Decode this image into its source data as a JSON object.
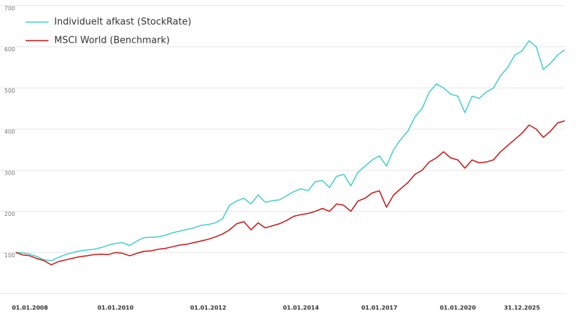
{
  "chart_data": {
    "type": "line",
    "categories": [
      null,
      null,
      "01.01.2008",
      null,
      null,
      null,
      null,
      null,
      null,
      null,
      null,
      null,
      null,
      null,
      "01.01.2010",
      null,
      null,
      null,
      null,
      null,
      null,
      null,
      null,
      null,
      null,
      null,
      null,
      "01.01.2012",
      null,
      null,
      null,
      null,
      null,
      null,
      null,
      null,
      null,
      null,
      null,
      null,
      "01.01.2014",
      null,
      null,
      null,
      null,
      null,
      null,
      null,
      null,
      null,
      null,
      "01.01.2017",
      null,
      null,
      null,
      null,
      null,
      null,
      null,
      null,
      null,
      null,
      "01.01.2020",
      null,
      null,
      null,
      null,
      null,
      null,
      null,
      null,
      "31.12.2025",
      null,
      null,
      null,
      null,
      null,
      null
    ],
    "series": [
      {
        "name": "Individuelt afkast (StockRate)",
        "color": "#40cfc9",
        "values": [
          100,
          99,
          96,
          90,
          82,
          80,
          88,
          95,
          100,
          104,
          106,
          108,
          112,
          118,
          122,
          124,
          117,
          128,
          136,
          137,
          138,
          142,
          148,
          152,
          156,
          160,
          166,
          168,
          172,
          182,
          215,
          225,
          232,
          218,
          240,
          222,
          226,
          228,
          238,
          248,
          255,
          250,
          272,
          275,
          258,
          285,
          290,
          262,
          295,
          310,
          325,
          335,
          310,
          350,
          375,
          395,
          430,
          450,
          490,
          510,
          500,
          485,
          480,
          440,
          480,
          475,
          490,
          500,
          530,
          550,
          580,
          590,
          615,
          600,
          545,
          560,
          580,
          593
        ]
      },
      {
        "name": "MSCI World (Benchmark)",
        "color": "#cc1111",
        "values": [
          100,
          94,
          92,
          85,
          80,
          70,
          78,
          82,
          86,
          90,
          92,
          95,
          96,
          95,
          100,
          98,
          92,
          98,
          103,
          104,
          108,
          110,
          114,
          118,
          120,
          124,
          128,
          132,
          138,
          145,
          155,
          170,
          175,
          155,
          172,
          160,
          165,
          170,
          178,
          188,
          192,
          195,
          200,
          207,
          200,
          218,
          215,
          200,
          225,
          232,
          245,
          250,
          210,
          240,
          255,
          270,
          290,
          300,
          320,
          330,
          345,
          330,
          325,
          305,
          325,
          318,
          320,
          325,
          345,
          360,
          375,
          390,
          410,
          400,
          380,
          395,
          415,
          420
        ]
      }
    ],
    "ylim": [
      0,
      700
    ],
    "yticks": [
      100,
      200,
      300,
      400,
      500,
      600,
      700
    ],
    "grid": true
  }
}
